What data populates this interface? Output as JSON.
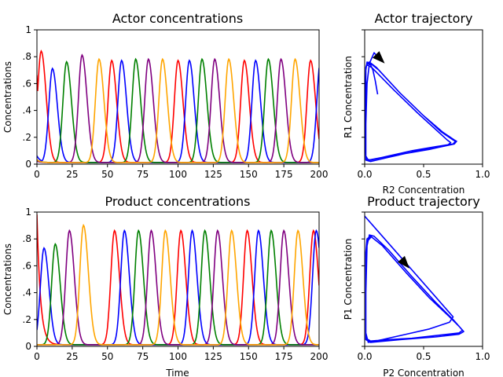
{
  "chart_data": [
    {
      "id": "actor",
      "type": "line",
      "title": "Actor concentrations",
      "xlabel": "",
      "ylabel": "Concentrations",
      "xlim": [
        0,
        200
      ],
      "ylim": [
        0,
        1
      ],
      "xticks": [
        0,
        25,
        50,
        75,
        100,
        125,
        150,
        175,
        200
      ],
      "xtick_labels": [
        "0",
        "25",
        "50",
        "75",
        "100",
        "125",
        "150",
        "175",
        "200"
      ],
      "yticks": [
        0,
        0.2,
        0.4,
        0.6,
        0.8,
        1
      ],
      "ytick_labels": [
        "0",
        ".2",
        ".4",
        ".6",
        ".8",
        "1"
      ],
      "series": [
        {
          "color": "#ff0000",
          "initial": 0.65,
          "peaks": [
            [
              3,
              0.83
            ],
            [
              53,
              0.76
            ],
            [
              100,
              0.76
            ],
            [
              147,
              0.76
            ],
            [
              194,
              0.76
            ]
          ]
        },
        {
          "color": "#0000ff",
          "initial": 0.05,
          "peaks": [
            [
              11,
              0.7
            ],
            [
              60,
              0.76
            ],
            [
              108,
              0.76
            ],
            [
              155,
              0.76
            ],
            [
              201,
              0.76
            ]
          ]
        },
        {
          "color": "#008000",
          "initial": 0.02,
          "peaks": [
            [
              21,
              0.75
            ],
            [
              70,
              0.77
            ],
            [
              117,
              0.77
            ],
            [
              164,
              0.77
            ]
          ]
        },
        {
          "color": "#800080",
          "initial": 0.01,
          "peaks": [
            [
              32,
              0.8
            ],
            [
              79,
              0.77
            ],
            [
              126,
              0.77
            ],
            [
              173,
              0.77
            ]
          ]
        },
        {
          "color": "#ffa500",
          "initial": 0.02,
          "peaks": [
            [
              44,
              0.77
            ],
            [
              89,
              0.77
            ],
            [
              136,
              0.77
            ],
            [
              183,
              0.77
            ]
          ]
        }
      ]
    },
    {
      "id": "actor-traj",
      "type": "line",
      "title": "Actor trajectory",
      "xlabel": "R2 Concentration",
      "ylabel": "R1 Concentration",
      "xlim": [
        0,
        1
      ],
      "ylim": [
        0,
        1
      ],
      "xticks": [
        0,
        0.5,
        1
      ],
      "xtick_labels": [
        "0.0",
        "0.5",
        "1.0"
      ],
      "yticks": [
        0,
        0.2,
        0.4,
        0.6,
        0.8,
        1
      ],
      "ytick_labels": [
        "",
        "",
        "",
        "",
        "",
        ""
      ],
      "color": "#0000ff",
      "path": [
        [
          0.11,
          0.52
        ],
        [
          0.09,
          0.62
        ],
        [
          0.07,
          0.7
        ],
        [
          0.05,
          0.74
        ],
        [
          0.03,
          0.75
        ],
        [
          0.02,
          0.74
        ],
        [
          0.06,
          0.72
        ],
        [
          0.25,
          0.55
        ],
        [
          0.45,
          0.38
        ],
        [
          0.6,
          0.26
        ],
        [
          0.7,
          0.18
        ],
        [
          0.73,
          0.16
        ],
        [
          0.7,
          0.14
        ],
        [
          0.55,
          0.11
        ],
        [
          0.35,
          0.08
        ],
        [
          0.15,
          0.05
        ],
        [
          0.03,
          0.03
        ],
        [
          0.01,
          0.06
        ],
        [
          0.01,
          0.3
        ],
        [
          0.01,
          0.55
        ],
        [
          0.01,
          0.72
        ],
        [
          0.02,
          0.75
        ],
        [
          0.04,
          0.76
        ],
        [
          0.1,
          0.72
        ],
        [
          0.3,
          0.53
        ],
        [
          0.5,
          0.36
        ],
        [
          0.65,
          0.24
        ],
        [
          0.75,
          0.18
        ],
        [
          0.77,
          0.17
        ],
        [
          0.75,
          0.15
        ],
        [
          0.6,
          0.13
        ],
        [
          0.4,
          0.1
        ],
        [
          0.2,
          0.06
        ],
        [
          0.05,
          0.03
        ],
        [
          0.01,
          0.04
        ],
        [
          0.005,
          0.2
        ],
        [
          0.005,
          0.5
        ],
        [
          0.01,
          0.7
        ],
        [
          0.02,
          0.76
        ],
        [
          0.05,
          0.75
        ],
        [
          0.12,
          0.7
        ],
        [
          0.3,
          0.53
        ],
        [
          0.5,
          0.36
        ],
        [
          0.66,
          0.24
        ],
        [
          0.76,
          0.18
        ],
        [
          0.78,
          0.17
        ],
        [
          0.76,
          0.15
        ],
        [
          0.6,
          0.12
        ],
        [
          0.4,
          0.09
        ],
        [
          0.2,
          0.05
        ],
        [
          0.05,
          0.02
        ],
        [
          0.01,
          0.03
        ],
        [
          0.01,
          0.3
        ],
        [
          0.02,
          0.6
        ],
        [
          0.04,
          0.75
        ],
        [
          0.08,
          0.83
        ],
        [
          0.11,
          0.8
        ]
      ],
      "arrow": {
        "from": [
          0.08,
          0.83
        ],
        "to": [
          0.17,
          0.75
        ]
      }
    },
    {
      "id": "product",
      "type": "line",
      "title": "Product concentrations",
      "xlabel": "Time",
      "ylabel": "Concentrations",
      "xlim": [
        0,
        200
      ],
      "ylim": [
        0,
        1
      ],
      "xticks": [
        0,
        25,
        50,
        75,
        100,
        125,
        150,
        175,
        200
      ],
      "xtick_labels": [
        "0",
        "25",
        "50",
        "75",
        "100",
        "125",
        "150",
        "175",
        "200"
      ],
      "yticks": [
        0,
        0.2,
        0.4,
        0.6,
        0.8,
        1
      ],
      "ytick_labels": [
        "0",
        ".2",
        ".4",
        ".6",
        ".8",
        "1"
      ],
      "series": [
        {
          "color": "#ff0000",
          "initial": 0.97,
          "peaks": [
            [
              55,
              0.85
            ],
            [
              102,
              0.85
            ],
            [
              149,
              0.85
            ],
            [
              196,
              0.85
            ]
          ]
        },
        {
          "color": "#0000ff",
          "initial": 0.0,
          "peaks": [
            [
              5,
              0.72
            ],
            [
              62,
              0.85
            ],
            [
              110,
              0.85
            ],
            [
              157,
              0.85
            ],
            [
              198,
              0.85
            ]
          ]
        },
        {
          "color": "#008000",
          "initial": 0.0,
          "peaks": [
            [
              13,
              0.75
            ],
            [
              72,
              0.85
            ],
            [
              119,
              0.85
            ],
            [
              166,
              0.85
            ]
          ]
        },
        {
          "color": "#800080",
          "initial": 0.0,
          "peaks": [
            [
              23,
              0.85
            ],
            [
              81,
              0.85
            ],
            [
              128,
              0.85
            ],
            [
              175,
              0.85
            ]
          ]
        },
        {
          "color": "#ffa500",
          "initial": 0.0,
          "peaks": [
            [
              33,
              0.89
            ],
            [
              91,
              0.85
            ],
            [
              138,
              0.85
            ],
            [
              185,
              0.85
            ]
          ]
        }
      ]
    },
    {
      "id": "product-traj",
      "type": "line",
      "title": "Product trajectory",
      "xlabel": "P2 Concentration",
      "ylabel": "P1 Concentration",
      "xlim": [
        0,
        1
      ],
      "ylim": [
        0,
        1
      ],
      "xticks": [
        0,
        0.5,
        1
      ],
      "xtick_labels": [
        "0.0",
        "0.5",
        "1.0"
      ],
      "yticks": [
        0,
        0.2,
        0.4,
        0.6,
        0.8,
        1
      ],
      "ytick_labels": [
        "",
        "",
        "",
        "",
        "",
        ""
      ],
      "color": "#0000ff",
      "path": [
        [
          0.0,
          0.97
        ],
        [
          0.2,
          0.77
        ],
        [
          0.4,
          0.57
        ],
        [
          0.6,
          0.37
        ],
        [
          0.72,
          0.25
        ],
        [
          0.75,
          0.22
        ],
        [
          0.72,
          0.18
        ],
        [
          0.55,
          0.13
        ],
        [
          0.35,
          0.09
        ],
        [
          0.15,
          0.05
        ],
        [
          0.03,
          0.03
        ],
        [
          0.01,
          0.1
        ],
        [
          0.01,
          0.4
        ],
        [
          0.01,
          0.7
        ],
        [
          0.02,
          0.8
        ],
        [
          0.05,
          0.82
        ],
        [
          0.15,
          0.75
        ],
        [
          0.35,
          0.55
        ],
        [
          0.55,
          0.36
        ],
        [
          0.72,
          0.22
        ],
        [
          0.8,
          0.15
        ],
        [
          0.83,
          0.12
        ],
        [
          0.8,
          0.1
        ],
        [
          0.6,
          0.08
        ],
        [
          0.4,
          0.06
        ],
        [
          0.2,
          0.05
        ],
        [
          0.05,
          0.04
        ],
        [
          0.01,
          0.06
        ],
        [
          0.01,
          0.4
        ],
        [
          0.02,
          0.75
        ],
        [
          0.04,
          0.83
        ],
        [
          0.08,
          0.82
        ],
        [
          0.2,
          0.72
        ],
        [
          0.4,
          0.52
        ],
        [
          0.6,
          0.33
        ],
        [
          0.76,
          0.19
        ],
        [
          0.82,
          0.13
        ],
        [
          0.84,
          0.11
        ],
        [
          0.8,
          0.09
        ],
        [
          0.6,
          0.07
        ],
        [
          0.3,
          0.05
        ],
        [
          0.05,
          0.03
        ],
        [
          0.01,
          0.05
        ],
        [
          0.01,
          0.5
        ],
        [
          0.02,
          0.78
        ],
        [
          0.06,
          0.82
        ]
      ],
      "arrow": {
        "from": [
          0.26,
          0.7
        ],
        "to": [
          0.38,
          0.58
        ]
      }
    }
  ]
}
